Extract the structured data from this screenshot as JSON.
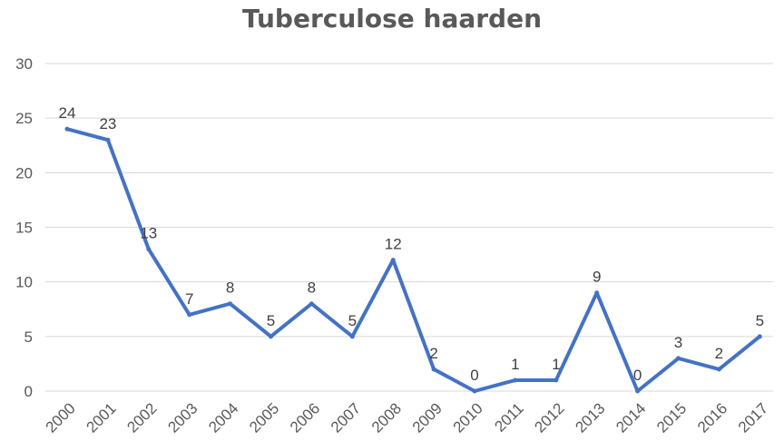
{
  "chart_data": {
    "type": "line",
    "title": "Tuberculose haarden",
    "categories": [
      "2000",
      "2001",
      "2002",
      "2003",
      "2004",
      "2005",
      "2006",
      "2007",
      "2008",
      "2009",
      "2010",
      "2011",
      "2012",
      "2013",
      "2014",
      "2015",
      "2016",
      "2017"
    ],
    "series": [
      {
        "values": [
          24,
          23,
          13,
          7,
          8,
          5,
          8,
          5,
          12,
          2,
          0,
          1,
          1,
          9,
          0,
          3,
          2,
          5
        ],
        "color": "#4472c4"
      }
    ],
    "ylim": [
      0,
      30
    ],
    "yticks": [
      "0",
      "5",
      "10",
      "15",
      "20",
      "25",
      "30"
    ],
    "grid": true,
    "data_labels": true,
    "legend": false
  },
  "colors": {
    "grid": "#d9d9d9",
    "text": "#595959",
    "line": "#4472c4"
  }
}
